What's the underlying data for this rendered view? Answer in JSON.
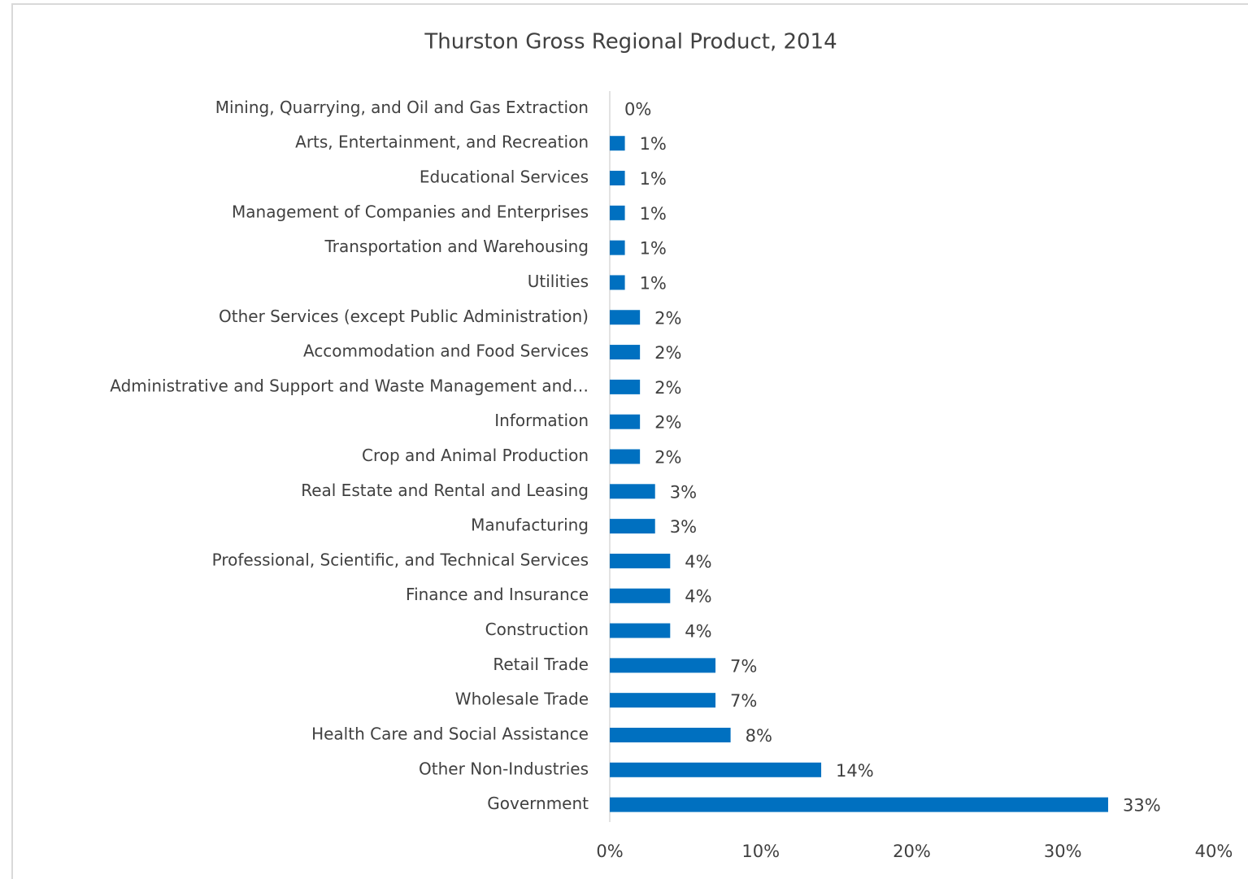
{
  "chart_data": {
    "type": "bar",
    "orientation": "horizontal",
    "title": "Thurston Gross Regional Product, 2014",
    "categories": [
      "Mining, Quarrying, and Oil and Gas Extraction",
      "Arts, Entertainment, and Recreation",
      "Educational Services",
      "Management of Companies and Enterprises",
      "Transportation and Warehousing",
      "Utilities",
      "Other Services (except Public Administration)",
      "Accommodation and Food Services",
      "Administrative and Support and Waste Management and…",
      "Information",
      "Crop and Animal Production",
      "Real Estate and Rental and Leasing",
      "Manufacturing",
      "Professional, Scientific, and Technical Services",
      "Finance and Insurance",
      "Construction",
      "Retail Trade",
      "Wholesale Trade",
      "Health Care and Social Assistance",
      "Other Non-Industries",
      "Government"
    ],
    "values": [
      0,
      1,
      1,
      1,
      1,
      1,
      2,
      2,
      2,
      2,
      2,
      3,
      3,
      4,
      4,
      4,
      7,
      7,
      8,
      14,
      33
    ],
    "value_labels": [
      "0%",
      "1%",
      "1%",
      "1%",
      "1%",
      "1%",
      "2%",
      "2%",
      "2%",
      "2%",
      "2%",
      "3%",
      "3%",
      "4%",
      "4%",
      "4%",
      "7%",
      "7%",
      "8%",
      "14%",
      "33%"
    ],
    "color": "#0070c0",
    "xlim": [
      0,
      40
    ],
    "xticks": [
      {
        "value": 0,
        "label": "0%"
      },
      {
        "value": 10,
        "label": "10%"
      },
      {
        "value": 20,
        "label": "20%"
      },
      {
        "value": 30,
        "label": "30%"
      },
      {
        "value": 40,
        "label": "40%"
      }
    ],
    "grid": false
  }
}
